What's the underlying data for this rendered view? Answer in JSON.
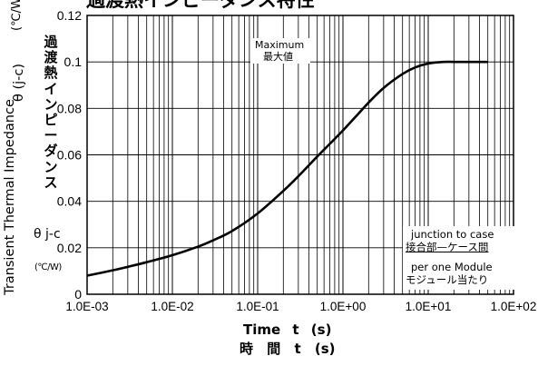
{
  "chart_data": {
    "type": "line",
    "title": "過渡熱インピーダンス特性",
    "xlabel": "Time t (s)",
    "xlabel_jp": "時 間 t (s)",
    "ylabel_unit_top": "(℃/W)",
    "ylabel_symbol": "θ (j-c)",
    "ylabel_jp": "過渡熱インピーダンス",
    "ylabel_en": "Transient Thermal Impedance",
    "ylabel_side_symbol": "θ j-c",
    "ylabel_side_unit": "(℃/W)",
    "x_scale": "log",
    "xlim": [
      0.001,
      100
    ],
    "ylim": [
      0,
      0.12
    ],
    "x_ticks": [
      {
        "value": 0.001,
        "label": "1.0E-03"
      },
      {
        "value": 0.01,
        "label": "1.0E-02"
      },
      {
        "value": 0.1,
        "label": "1.0E-01"
      },
      {
        "value": 1,
        "label": "1.0E+00"
      },
      {
        "value": 10,
        "label": "1.0E+01"
      },
      {
        "value": 100,
        "label": "1.0E+02"
      }
    ],
    "y_ticks": [
      {
        "value": 0,
        "label": "0"
      },
      {
        "value": 0.02,
        "label": "0.02"
      },
      {
        "value": 0.04,
        "label": "0.04"
      },
      {
        "value": 0.06,
        "label": "0.06"
      },
      {
        "value": 0.08,
        "label": "0.08"
      },
      {
        "value": 0.1,
        "label": "0.1"
      },
      {
        "value": 0.12,
        "label": "0.12"
      }
    ],
    "grid": true,
    "annotations": {
      "maximum_en": "Maximum",
      "maximum_jp": "最大値",
      "junction_en": "junction to case",
      "junction_jp": "接合部—ケース間",
      "module_en": "per one Module",
      "module_jp": "モジュール当たり"
    },
    "series": [
      {
        "x": [
          0.001,
          0.002,
          0.003,
          0.005,
          0.01,
          0.02,
          0.03,
          0.05,
          0.1,
          0.2,
          0.3,
          0.5,
          0.7,
          1,
          1.5,
          2,
          3,
          5,
          7,
          10,
          15,
          20,
          30,
          50
        ],
        "y": [
          0.008,
          0.0103,
          0.0118,
          0.0138,
          0.0168,
          0.0205,
          0.0232,
          0.0272,
          0.0348,
          0.0445,
          0.0508,
          0.0593,
          0.0647,
          0.0705,
          0.0775,
          0.0825,
          0.0888,
          0.0948,
          0.0976,
          0.0993,
          0.1,
          0.1,
          0.1,
          0.1
        ]
      }
    ]
  }
}
